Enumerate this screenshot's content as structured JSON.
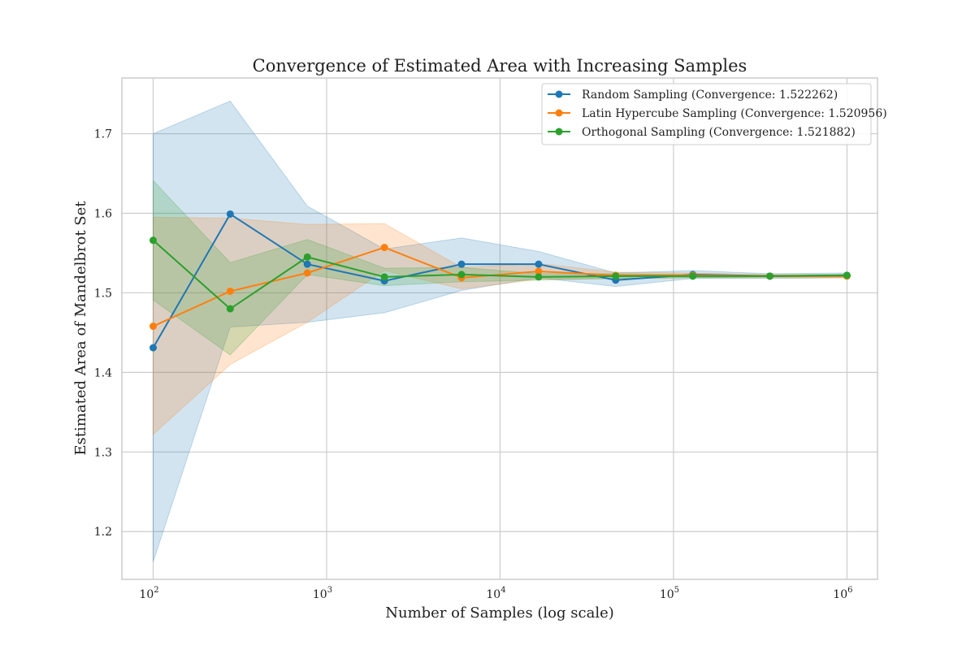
{
  "chart_data": {
    "type": "line",
    "title": "Convergence of Estimated Area with Increasing Samples",
    "xlabel": "Number of Samples (log scale)",
    "ylabel": "Estimated Area of Mandelbrot Set",
    "xscale": "log",
    "xlim": [
      66,
      1500000
    ],
    "ylim": [
      1.14,
      1.77
    ],
    "x_ticks": [
      {
        "value": 100,
        "base": "10",
        "exp": "2"
      },
      {
        "value": 1000,
        "base": "10",
        "exp": "3"
      },
      {
        "value": 10000,
        "base": "10",
        "exp": "4"
      },
      {
        "value": 100000,
        "base": "10",
        "exp": "5"
      },
      {
        "value": 1000000,
        "base": "10",
        "exp": "6"
      }
    ],
    "y_ticks": [
      {
        "value": 1.2,
        "label": "1.2"
      },
      {
        "value": 1.3,
        "label": "1.3"
      },
      {
        "value": 1.4,
        "label": "1.4"
      },
      {
        "value": 1.5,
        "label": "1.5"
      },
      {
        "value": 1.6,
        "label": "1.6"
      },
      {
        "value": 1.7,
        "label": "1.7"
      }
    ],
    "grid": true,
    "legend_position": "top-right",
    "x": [
      100,
      278,
      774,
      2154,
      5995,
      16681,
      46416,
      129155,
      359381,
      1000000
    ],
    "series": [
      {
        "name": "Random Sampling (Convergence: 1.522262)",
        "color": "#1f77b4",
        "values": [
          1.431,
          1.599,
          1.536,
          1.515,
          1.536,
          1.536,
          1.516,
          1.523,
          1.521,
          1.522
        ],
        "lower": [
          1.162,
          1.457,
          1.463,
          1.475,
          1.503,
          1.519,
          1.508,
          1.518,
          1.518,
          1.519
        ],
        "upper": [
          1.7,
          1.741,
          1.609,
          1.555,
          1.569,
          1.552,
          1.525,
          1.528,
          1.524,
          1.525
        ]
      },
      {
        "name": "Latin Hypercube Sampling (Convergence: 1.520956)",
        "color": "#ff7f0e",
        "values": [
          1.458,
          1.502,
          1.525,
          1.557,
          1.519,
          1.527,
          1.522,
          1.522,
          1.521,
          1.521
        ],
        "lower": [
          1.322,
          1.41,
          1.463,
          1.528,
          1.505,
          1.517,
          1.518,
          1.519,
          1.519,
          1.519
        ],
        "upper": [
          1.595,
          1.594,
          1.586,
          1.587,
          1.532,
          1.537,
          1.526,
          1.525,
          1.523,
          1.523
        ]
      },
      {
        "name": "Orthogonal Sampling (Convergence: 1.521882)",
        "color": "#2ca02c",
        "values": [
          1.566,
          1.48,
          1.545,
          1.52,
          1.523,
          1.52,
          1.521,
          1.521,
          1.521,
          1.522
        ],
        "lower": [
          1.491,
          1.422,
          1.523,
          1.509,
          1.514,
          1.516,
          1.518,
          1.519,
          1.52,
          1.52
        ],
        "upper": [
          1.641,
          1.538,
          1.567,
          1.531,
          1.532,
          1.524,
          1.524,
          1.523,
          1.522,
          1.523
        ]
      }
    ]
  }
}
